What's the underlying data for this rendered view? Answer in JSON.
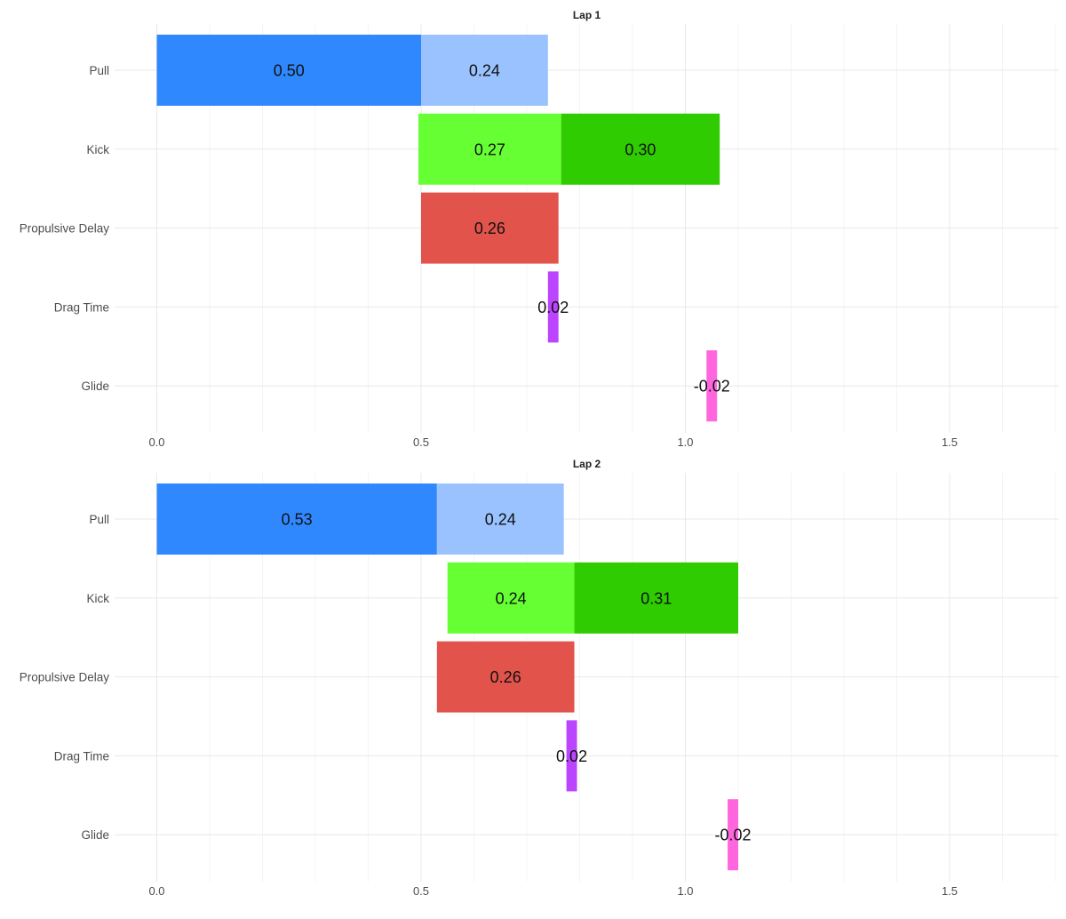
{
  "chart_data": [
    {
      "type": "bar",
      "orientation": "horizontal",
      "stacked": true,
      "title": "Lap 1",
      "categories": [
        "Pull",
        "Kick",
        "Propulsive Delay",
        "Drag Time",
        "Glide"
      ],
      "xlim": [
        0,
        1.7
      ],
      "xticks": [
        0.0,
        0.5,
        1.0,
        1.5
      ],
      "xtick_labels": [
        "0.0",
        "0.5",
        "1.0",
        "1.5"
      ],
      "grid": true,
      "legend": "none",
      "segments": [
        {
          "category": "Pull",
          "start": 0.0,
          "value": 0.5,
          "label": "0.50",
          "color": "#3088ff"
        },
        {
          "category": "Pull",
          "start": 0.5,
          "value": 0.24,
          "label": "0.24",
          "color": "#99c2ff"
        },
        {
          "category": "Kick",
          "start": 0.495,
          "value": 0.27,
          "label": "0.27",
          "color": "#66ff33"
        },
        {
          "category": "Kick",
          "start": 0.765,
          "value": 0.3,
          "label": "0.30",
          "color": "#2ecc00"
        },
        {
          "category": "Propulsive Delay",
          "start": 0.5,
          "value": 0.26,
          "label": "0.26",
          "color": "#e2534c"
        },
        {
          "category": "Drag Time",
          "start": 0.74,
          "value": 0.02,
          "label": "0.02",
          "color": "#bb44ff"
        },
        {
          "category": "Glide",
          "start": 1.06,
          "value": -0.02,
          "label": "-0.02",
          "color": "#ff66dd"
        }
      ]
    },
    {
      "type": "bar",
      "orientation": "horizontal",
      "stacked": true,
      "title": "Lap 2",
      "categories": [
        "Pull",
        "Kick",
        "Propulsive Delay",
        "Drag Time",
        "Glide"
      ],
      "xlim": [
        0,
        1.7
      ],
      "xticks": [
        0.0,
        0.5,
        1.0,
        1.5
      ],
      "xtick_labels": [
        "0.0",
        "0.5",
        "1.0",
        "1.5"
      ],
      "grid": true,
      "legend": "none",
      "segments": [
        {
          "category": "Pull",
          "start": 0.0,
          "value": 0.53,
          "label": "0.53",
          "color": "#3088ff"
        },
        {
          "category": "Pull",
          "start": 0.53,
          "value": 0.24,
          "label": "0.24",
          "color": "#99c2ff"
        },
        {
          "category": "Kick",
          "start": 0.55,
          "value": 0.24,
          "label": "0.24",
          "color": "#66ff33"
        },
        {
          "category": "Kick",
          "start": 0.79,
          "value": 0.31,
          "label": "0.31",
          "color": "#2ecc00"
        },
        {
          "category": "Propulsive Delay",
          "start": 0.53,
          "value": 0.26,
          "label": "0.26",
          "color": "#e2534c"
        },
        {
          "category": "Drag Time",
          "start": 0.775,
          "value": 0.02,
          "label": "0.02",
          "color": "#bb44ff"
        },
        {
          "category": "Glide",
          "start": 1.1,
          "value": -0.02,
          "label": "-0.02",
          "color": "#ff66dd"
        }
      ]
    }
  ]
}
